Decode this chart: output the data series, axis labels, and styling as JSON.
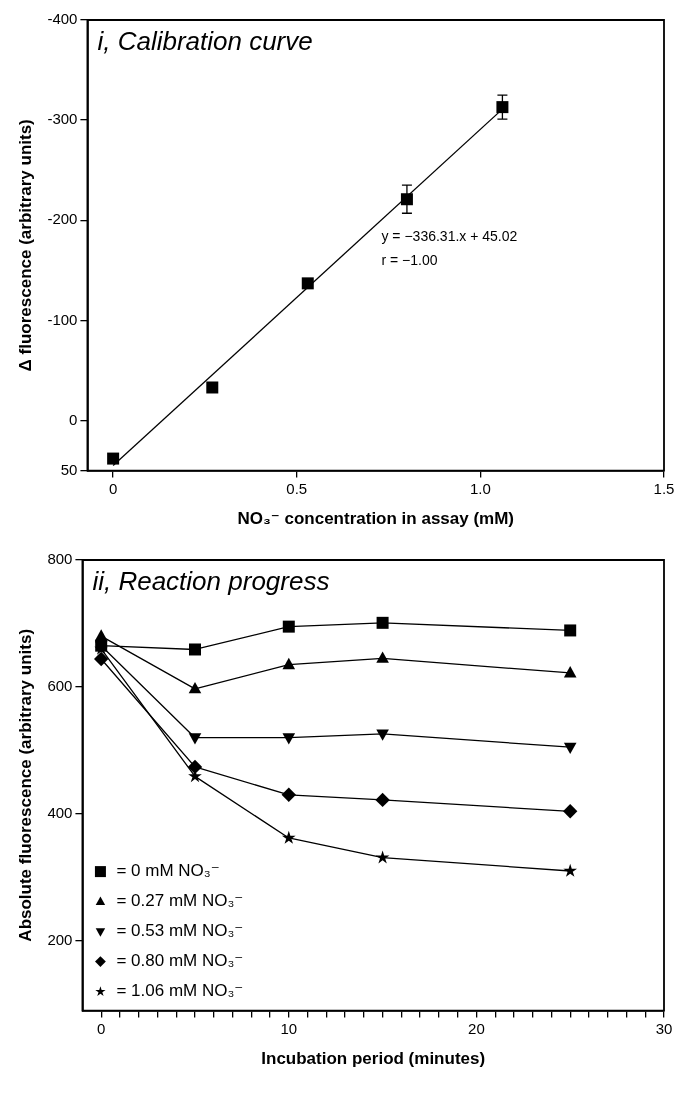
{
  "chart_data": [
    {
      "type": "scatter",
      "title": "i, Calibration curve",
      "xlabel": "NO₃⁻ concentration in assay (mM)",
      "ylabel": "Δ fluorescence (arbitrary units)",
      "annotations": [
        "y = −336.31.x + 45.02",
        "r = −1.00"
      ],
      "xlim": [
        -0.07,
        1.5
      ],
      "xticks": [
        0,
        0.5,
        {
          "value": 1,
          "label": "1.0"
        },
        1.5
      ],
      "ylim": [
        50,
        -400
      ],
      "yticks": [
        50,
        0,
        -100,
        -200,
        -300,
        -400
      ],
      "grid": false,
      "marker": "square",
      "series": [
        {
          "color": "#000000",
          "x": [
            0,
            0.27,
            0.53,
            0.8,
            1.06
          ],
          "values": [
            38,
            -33,
            -137,
            -221,
            -313
          ],
          "errors": [
            null,
            null,
            null,
            14,
            12
          ]
        },
        {
          "type": "line",
          "color": "#000000",
          "marker": "none",
          "x": [
            0,
            1.06
          ],
          "values": [
            45,
            -311
          ]
        }
      ]
    },
    {
      "type": "line",
      "title": "ii, Reaction progress",
      "xlabel": "Incubation period (minutes)",
      "ylabel": "Absolute fluorescence (arbitrary units)",
      "x": [
        0,
        5,
        10,
        15,
        25
      ],
      "xlim": [
        -1,
        30
      ],
      "xticks": [
        0,
        {
          "value": 1,
          "label": null
        },
        {
          "value": 2,
          "label": null
        },
        {
          "value": 3,
          "label": null
        },
        {
          "value": 4,
          "label": null
        },
        {
          "value": 5,
          "label": null
        },
        {
          "value": 6,
          "label": null
        },
        {
          "value": 7,
          "label": null
        },
        {
          "value": 8,
          "label": null
        },
        {
          "value": 9,
          "label": null
        },
        10,
        {
          "value": 11,
          "label": null
        },
        {
          "value": 12,
          "label": null
        },
        {
          "value": 13,
          "label": null
        },
        {
          "value": 14,
          "label": null
        },
        {
          "value": 15,
          "label": null
        },
        {
          "value": 16,
          "label": null
        },
        {
          "value": 17,
          "label": null
        },
        {
          "value": 18,
          "label": null
        },
        {
          "value": 19,
          "label": null
        },
        20,
        {
          "value": 21,
          "label": null
        },
        {
          "value": 22,
          "label": null
        },
        {
          "value": 23,
          "label": null
        },
        {
          "value": 24,
          "label": null
        },
        {
          "value": 25,
          "label": null
        },
        {
          "value": 26,
          "label": null
        },
        {
          "value": 27,
          "label": null
        },
        {
          "value": 28,
          "label": null
        },
        {
          "value": 29,
          "label": null
        },
        30
      ],
      "ylim": [
        90,
        800
      ],
      "yticks": [
        200,
        400,
        600,
        800
      ],
      "grid": false,
      "legend": "bottom left",
      "line_style": "solid",
      "series": [
        {
          "name": "= 0 mM NO₃⁻",
          "color": "#000000",
          "marker": "square",
          "values": [
            665,
            659,
            695,
            701,
            689
          ]
        },
        {
          "name": "= 0.27 mM NO₃⁻",
          "color": "#000000",
          "marker": "triangle",
          "values": [
            680,
            597,
            635,
            645,
            622
          ]
        },
        {
          "name": "= 0.53 mM NO₃⁻",
          "color": "#000000",
          "marker": "triangle-down",
          "values": [
            665,
            520,
            520,
            526,
            505
          ]
        },
        {
          "name": "= 0.80 mM NO₃⁻",
          "color": "#000000",
          "marker": "diamond",
          "values": [
            644,
            474,
            430,
            422,
            404
          ]
        },
        {
          "name": "= 1.06 mM NO₃⁻",
          "color": "#000000",
          "marker": "star",
          "values": [
            660,
            459,
            362,
            331,
            310
          ]
        }
      ]
    }
  ]
}
